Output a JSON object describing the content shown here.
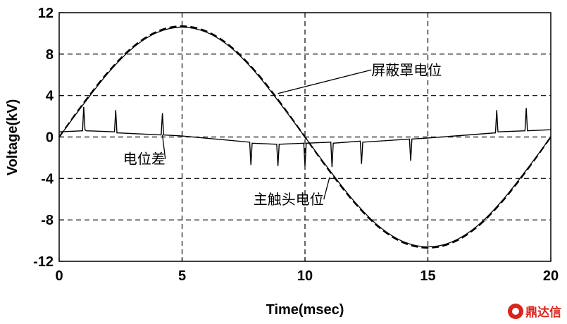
{
  "chart_data": {
    "type": "line",
    "xlabel": "Time(msec)",
    "ylabel": "Voltage(kV)",
    "xlim": [
      0,
      20
    ],
    "ylim": [
      -12,
      12
    ],
    "xticks": [
      0,
      5,
      10,
      15,
      20
    ],
    "yticks": [
      12,
      8,
      4,
      0,
      -4,
      -8,
      -12
    ],
    "grid": true,
    "grid_style": "dashed",
    "series": [
      {
        "name": "屏蔽罩电位",
        "x": [
          0,
          1,
          2,
          3,
          4,
          5,
          6,
          7,
          8,
          9,
          10,
          11,
          12,
          13,
          14,
          15,
          16,
          17,
          18,
          19,
          20
        ],
        "values": [
          0,
          3.3,
          6.3,
          8.7,
          10.2,
          10.7,
          10.2,
          8.7,
          6.3,
          3.3,
          0,
          -3.3,
          -6.3,
          -8.7,
          -10.2,
          -10.7,
          -10.2,
          -8.7,
          -6.3,
          -3.3,
          0
        ]
      },
      {
        "name": "主触头电位",
        "x": [
          0,
          1,
          2,
          3,
          4,
          5,
          6,
          7,
          8,
          9,
          10,
          11,
          12,
          13,
          14,
          15,
          16,
          17,
          18,
          19,
          20
        ],
        "values": [
          0,
          3.2,
          6.2,
          8.6,
          10.1,
          10.6,
          10.1,
          8.6,
          6.2,
          3.2,
          0,
          -3.2,
          -6.2,
          -8.6,
          -10.1,
          -10.6,
          -10.1,
          -8.6,
          -6.2,
          -3.2,
          0
        ]
      },
      {
        "name": "电位差",
        "x": [
          0,
          0.95,
          1.0,
          1.05,
          1.1,
          2.25,
          2.3,
          2.35,
          4.15,
          4.2,
          4.25,
          5,
          7.75,
          7.8,
          7.85,
          8.85,
          8.9,
          8.95,
          9.95,
          10.0,
          10.05,
          11.05,
          11.1,
          11.15,
          12.25,
          12.3,
          12.35,
          14.25,
          14.3,
          14.35,
          15,
          17.75,
          17.8,
          17.85,
          18.95,
          19.0,
          19.05,
          20
        ],
        "values": [
          0.5,
          0.6,
          2.9,
          0.7,
          0.6,
          0.5,
          2.6,
          0.4,
          0.2,
          2.3,
          0.2,
          0.1,
          -0.5,
          -2.7,
          -0.6,
          -0.7,
          -2.8,
          -0.7,
          -0.6,
          -2.8,
          -0.6,
          -0.5,
          -2.9,
          -0.6,
          -0.4,
          -2.6,
          -0.5,
          -0.2,
          -2.3,
          -0.2,
          -0.1,
          0.4,
          2.6,
          0.5,
          0.6,
          2.8,
          0.6,
          0.7
        ]
      }
    ],
    "annotations": [
      {
        "text": "屏蔽罩电位",
        "x": 12.7,
        "y": 6.0,
        "ax": 8.9,
        "ay": 4.2
      },
      {
        "text": "电位差",
        "x": 2.6,
        "y": -2.6,
        "ax": 4.2,
        "ay": 0.2
      },
      {
        "text": "主触头电位",
        "x": 7.9,
        "y": -6.5,
        "ax": 11.0,
        "ay": -3.9
      }
    ]
  },
  "watermark": {
    "text": "鼎达信"
  }
}
